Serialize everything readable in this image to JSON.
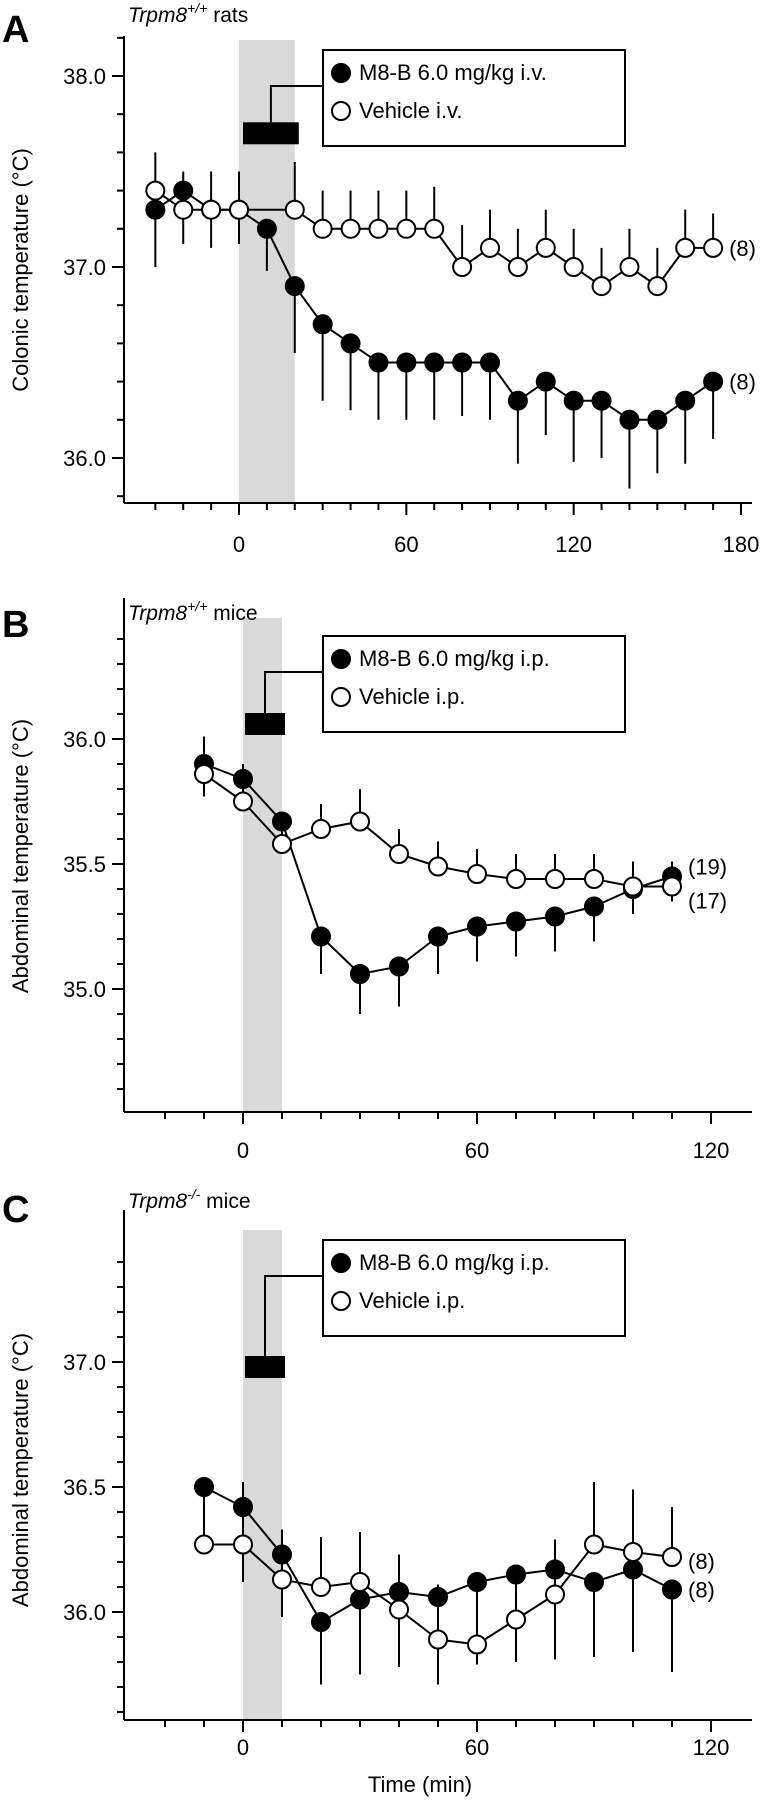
{
  "figure": {
    "x_axis_label": "Time (min)"
  },
  "chart_data": [
    {
      "type": "line",
      "panel": "A",
      "title_italic": "Trpm8",
      "title_sup": "+/+",
      "title_rest": " rats",
      "ylabel": "Colonic temperature (°C)",
      "xlabel": "",
      "xlim": [
        -35,
        183
      ],
      "ylim": [
        35.8,
        38.3
      ],
      "xticks": [
        "0",
        "60",
        "120",
        "180"
      ],
      "yticks": [
        "36.0",
        "37.0",
        "38.0"
      ],
      "shaded_interval": [
        0,
        20
      ],
      "bar_marker_interval": [
        0,
        20
      ],
      "bar_marker_y": 37.7,
      "legend": [
        "M8-B 6.0 mg/kg i.v.",
        "Vehicle i.v."
      ],
      "series": [
        {
          "name": "M8-B 6.0 mg/kg i.v.",
          "fill": "black",
          "n_label": "(8)",
          "x": [
            -30,
            -20,
            -10,
            0,
            10,
            20,
            30,
            40,
            50,
            60,
            70,
            80,
            90,
            100,
            110,
            120,
            130,
            140,
            150,
            160,
            170
          ],
          "y": [
            37.3,
            37.4,
            37.3,
            37.3,
            37.2,
            36.9,
            36.7,
            36.6,
            36.5,
            36.5,
            36.5,
            36.5,
            36.5,
            36.3,
            36.4,
            36.3,
            36.3,
            36.2,
            36.2,
            36.3,
            36.4
          ],
          "err": [
            0.3,
            0.28,
            0.2,
            0.18,
            0.22,
            0.35,
            0.4,
            0.35,
            0.3,
            0.3,
            0.3,
            0.28,
            0.3,
            0.33,
            0.28,
            0.32,
            0.3,
            0.36,
            0.28,
            0.33,
            0.3
          ]
        },
        {
          "name": "Vehicle i.v.",
          "fill": "white",
          "n_label": "(8)",
          "x": [
            -30,
            -20,
            -10,
            0,
            20,
            30,
            40,
            50,
            60,
            70,
            80,
            90,
            100,
            110,
            120,
            130,
            140,
            150,
            160,
            170
          ],
          "y": [
            37.4,
            37.3,
            37.3,
            37.3,
            37.3,
            37.2,
            37.2,
            37.2,
            37.2,
            37.2,
            37.0,
            37.1,
            37.0,
            37.1,
            37.0,
            36.9,
            37.0,
            36.9,
            37.1,
            37.1
          ],
          "err": [
            0.2,
            0.2,
            0.2,
            0.2,
            0.25,
            0.2,
            0.2,
            0.2,
            0.2,
            0.22,
            0.22,
            0.2,
            0.2,
            0.2,
            0.2,
            0.2,
            0.2,
            0.2,
            0.2,
            0.18
          ]
        }
      ]
    },
    {
      "type": "line",
      "panel": "B",
      "title_italic": "Trpm8",
      "title_sup": "+/+",
      "title_rest": " mice",
      "ylabel": "Abdominal temperature (°C)",
      "xlabel": "",
      "xlim": [
        -25,
        122
      ],
      "ylim": [
        34.55,
        36.4
      ],
      "xticks": [
        "0",
        "60",
        "120"
      ],
      "yticks": [
        "35.0",
        "35.5",
        "36.0"
      ],
      "shaded_interval": [
        0,
        10
      ],
      "bar_marker_interval": [
        0,
        10
      ],
      "bar_marker_y": 36.06,
      "legend": [
        "M8-B 6.0 mg/kg i.p.",
        "Vehicle i.p."
      ],
      "series": [
        {
          "name": "M8-B 6.0 mg/kg i.p.",
          "fill": "black",
          "n_label": "(19)",
          "x": [
            -10,
            0,
            10,
            20,
            30,
            40,
            50,
            60,
            70,
            80,
            90,
            100,
            110
          ],
          "y": [
            35.9,
            35.84,
            35.67,
            35.21,
            35.06,
            35.09,
            35.21,
            35.25,
            35.27,
            35.29,
            35.33,
            35.4,
            35.45
          ],
          "err": [
            0.13,
            0.13,
            0.13,
            0.15,
            0.16,
            0.16,
            0.15,
            0.14,
            0.14,
            0.14,
            0.14,
            0.1,
            0.1
          ]
        },
        {
          "name": "Vehicle i.p.",
          "fill": "white",
          "n_label": "(17)",
          "x": [
            -10,
            0,
            10,
            20,
            30,
            40,
            50,
            60,
            70,
            80,
            90,
            100,
            110
          ],
          "y": [
            35.86,
            35.75,
            35.58,
            35.64,
            35.67,
            35.54,
            35.49,
            35.46,
            35.44,
            35.44,
            35.44,
            35.41,
            35.41
          ],
          "err": [
            0.15,
            0.15,
            0.1,
            0.1,
            0.13,
            0.1,
            0.1,
            0.1,
            0.1,
            0.1,
            0.1,
            0.1,
            0.1
          ]
        }
      ]
    },
    {
      "type": "line",
      "panel": "C",
      "title_italic": "Trpm8",
      "title_sup": "-/-",
      "title_rest": " mice",
      "ylabel": "Abdominal temperature (°C)",
      "xlabel": "Time (min)",
      "xlim": [
        -25,
        122
      ],
      "ylim": [
        35.45,
        37.4
      ],
      "xticks": [
        "0",
        "60",
        "120"
      ],
      "yticks": [
        "36.0",
        "36.5",
        "37.0"
      ],
      "shaded_interval": [
        0,
        10
      ],
      "bar_marker_interval": [
        0,
        10
      ],
      "bar_marker_y": 36.98,
      "legend": [
        "M8-B 6.0 mg/kg i.p.",
        "Vehicle i.p."
      ],
      "series": [
        {
          "name": "M8-B 6.0 mg/kg i.p.",
          "fill": "black",
          "n_label": "(8)",
          "x": [
            -10,
            0,
            10,
            20,
            30,
            40,
            50,
            60,
            70,
            80,
            90,
            100,
            110
          ],
          "y": [
            36.5,
            36.42,
            36.23,
            35.96,
            36.05,
            36.08,
            36.06,
            36.12,
            36.15,
            36.17,
            36.12,
            36.17,
            36.09
          ],
          "err": [
            0.26,
            0.3,
            0.25,
            0.25,
            0.3,
            0.3,
            0.35,
            0.33,
            0.35,
            0.36,
            0.3,
            0.33,
            0.33
          ]
        },
        {
          "name": "Vehicle i.p.",
          "fill": "white",
          "n_label": "(8)",
          "x": [
            -10,
            0,
            10,
            20,
            30,
            40,
            50,
            60,
            70,
            80,
            90,
            100,
            110
          ],
          "y": [
            36.27,
            36.27,
            36.13,
            36.1,
            36.12,
            36.01,
            35.89,
            35.87,
            35.97,
            36.07,
            36.27,
            36.24,
            36.22
          ],
          "err": [
            0.25,
            0.25,
            0.2,
            0.2,
            0.2,
            0.22,
            0.22,
            0.22,
            0.2,
            0.22,
            0.25,
            0.25,
            0.2
          ]
        }
      ]
    }
  ]
}
